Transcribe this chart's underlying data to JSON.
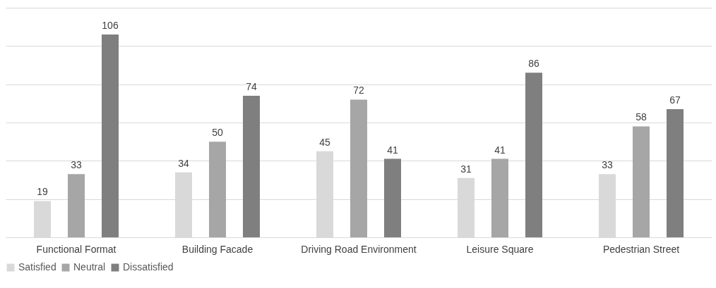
{
  "chart_data": {
    "type": "bar",
    "categories": [
      "Functional Format",
      "Building Facade",
      "Driving Road Environment",
      "Leisure Square",
      "Pedestrian Street"
    ],
    "series": [
      {
        "name": "Satisfied",
        "color": "#d9d9d9",
        "values": [
          19,
          34,
          45,
          31,
          33
        ]
      },
      {
        "name": "Neutral",
        "color": "#a6a6a6",
        "values": [
          33,
          50,
          72,
          41,
          58
        ]
      },
      {
        "name": "Dissatisfied",
        "color": "#7f7f7f",
        "values": [
          106,
          74,
          41,
          86,
          67
        ]
      }
    ],
    "ylim": [
      0,
      120
    ],
    "yticks": [
      {
        "value": 0,
        "label": null
      },
      {
        "value": 20,
        "label": null
      },
      {
        "value": 40,
        "label": null
      },
      {
        "value": 60,
        "label": null
      },
      {
        "value": 80,
        "label": null
      },
      {
        "value": 100,
        "label": null
      },
      {
        "value": 120,
        "label": null
      }
    ],
    "tick_labels": "x",
    "grid": "y",
    "legend": "bottom",
    "data_labels": true
  }
}
